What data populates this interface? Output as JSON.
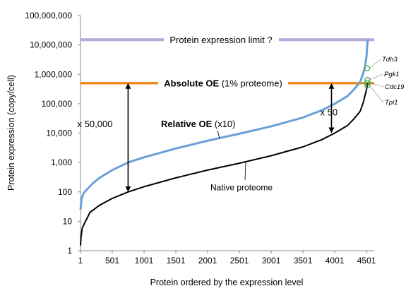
{
  "chart_data": {
    "type": "line",
    "xlabel": "Protein ordered by the expression level",
    "ylabel": "Protein expression (copy/cell)",
    "x_scale": "linear",
    "y_scale": "log",
    "xlim": [
      1,
      4600
    ],
    "ylim": [
      1,
      100000000
    ],
    "x_ticks": [
      "1",
      "501",
      "1001",
      "1501",
      "2001",
      "2501",
      "3001",
      "3501",
      "4001",
      "4501"
    ],
    "y_ticks": [
      "1",
      "10",
      "100",
      "1,000",
      "10,000",
      "100,000",
      "1,000,000",
      "10,000,000",
      "100,000,000"
    ],
    "grid": false,
    "colors": {
      "relative": "#6a9fd8",
      "native": "#000000",
      "absolute": "#f28a1e",
      "limit": "#b7a6dc",
      "marker": "#4caf50"
    },
    "series": [
      {
        "name": "Relative OE (x10)",
        "x": [
          1,
          20,
          50,
          100,
          200,
          300,
          500,
          750,
          1000,
          1500,
          2000,
          2500,
          3000,
          3500,
          3800,
          4000,
          4200,
          4300,
          4400,
          4450,
          4480,
          4500,
          4510,
          4520
        ],
        "y": [
          25,
          60,
          90,
          120,
          200,
          300,
          550,
          1000,
          1500,
          3000,
          5500,
          9500,
          17000,
          34000,
          60000,
          100000,
          180000,
          300000,
          550000,
          1100000,
          2000000,
          4000000,
          8000000,
          15000000
        ]
      },
      {
        "name": "Native proteome",
        "x": [
          1,
          10,
          30,
          80,
          150,
          300,
          500,
          750,
          1000,
          1500,
          2000,
          2500,
          3000,
          3500,
          3800,
          4000,
          4200,
          4300,
          4400,
          4450,
          4500,
          4520
        ],
        "y": [
          1.5,
          3,
          6,
          10,
          20,
          35,
          60,
          100,
          150,
          300,
          550,
          950,
          1700,
          3400,
          6000,
          10000,
          18000,
          30000,
          55000,
          110000,
          300000,
          500000
        ]
      }
    ],
    "reference_lines": [
      {
        "name": "Absolute OE (1% proteome)",
        "y": 500000
      },
      {
        "name": "Protein expression limit ?",
        "y": 15000000
      }
    ],
    "annotations": {
      "limit_label": "Protein expression limit ?",
      "absolute_bold": "Absolute OE",
      "absolute_rest": " (1% proteome)",
      "relative_bold": "Relative OE",
      "relative_rest": " (x10)",
      "native_label": "Native proteome",
      "fold_large": "x 50,000",
      "fold_small": "x 50"
    },
    "arrows": [
      {
        "x": 750,
        "from": 100,
        "to": 500000,
        "label": "x 50,000"
      },
      {
        "x": 3950,
        "from": 10000,
        "to": 500000,
        "label": "x 50"
      }
    ],
    "genes": [
      {
        "name": "Tdh3",
        "x": 4510,
        "y": 1600000
      },
      {
        "name": "Pgk1",
        "x": 4515,
        "y": 650000
      },
      {
        "name": "Cdc19",
        "x": 4515,
        "y": 520000
      },
      {
        "name": "Tpi1",
        "x": 4515,
        "y": 420000
      }
    ]
  }
}
